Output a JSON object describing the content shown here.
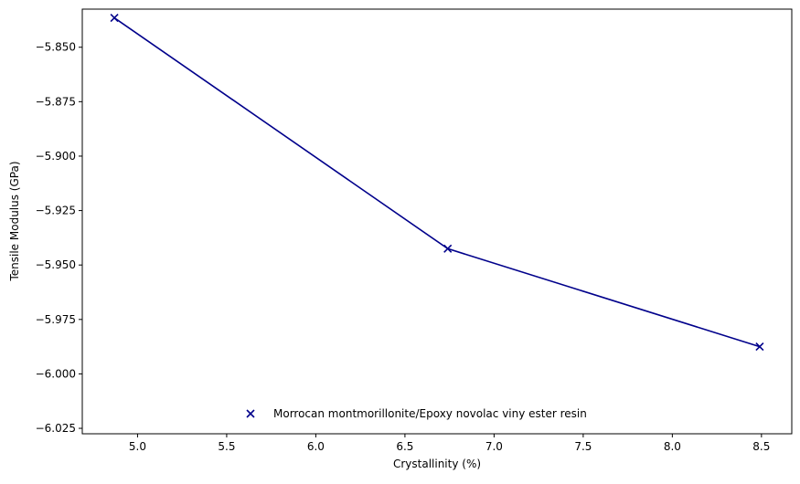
{
  "chart_data": {
    "type": "line",
    "xlabel": "Crystallinity (%)",
    "ylabel": "Tensile Modulus (GPa)",
    "xlim": [
      4.69,
      8.67
    ],
    "ylim": [
      -6.0275,
      -5.8325
    ],
    "xticks": [
      5.0,
      5.5,
      6.0,
      6.5,
      7.0,
      7.5,
      8.0,
      8.5
    ],
    "xtick_labels": [
      "5.0",
      "5.5",
      "6.0",
      "6.5",
      "7.0",
      "7.5",
      "8.0",
      "8.5"
    ],
    "yticks": [
      -5.85,
      -5.875,
      -5.9,
      -5.925,
      -5.95,
      -5.975,
      -6.0,
      -6.025
    ],
    "ytick_labels": [
      "−5.850",
      "−5.875",
      "−5.900",
      "−5.925",
      "−5.950",
      "−5.975",
      "−6.000",
      "−6.025"
    ],
    "grid": false,
    "legend_position": "lower center",
    "series": [
      {
        "name": "Morrocan montmorillonite/Epoxy novolac viny ester resin",
        "color": "#00008b",
        "marker": "x",
        "x": [
          4.87,
          6.74,
          8.49
        ],
        "y": [
          -5.8365,
          -5.9425,
          -5.9875
        ]
      }
    ]
  }
}
